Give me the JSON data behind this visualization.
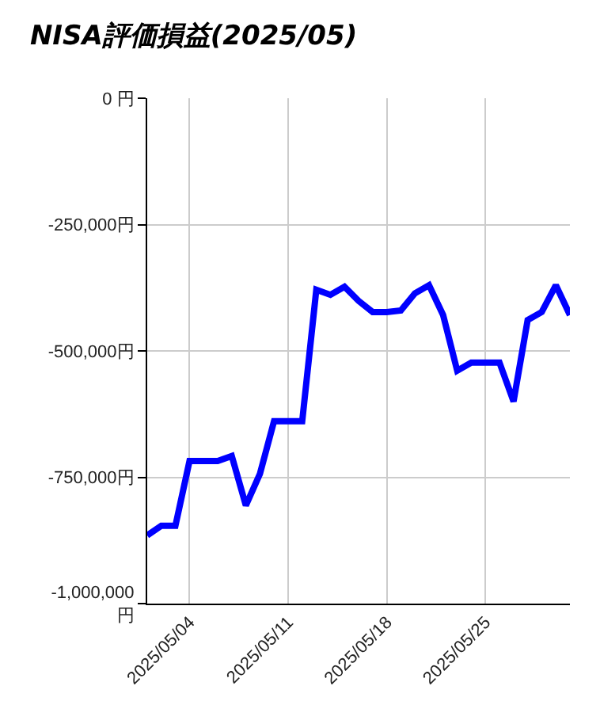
{
  "chart_data": {
    "type": "line",
    "title": "NISA評価損益(2025/05)",
    "x": [
      "2025-05-01",
      "2025-05-02",
      "2025-05-03",
      "2025-05-04",
      "2025-05-05",
      "2025-05-06",
      "2025-05-07",
      "2025-05-08",
      "2025-05-09",
      "2025-05-10",
      "2025-05-11",
      "2025-05-12",
      "2025-05-13",
      "2025-05-14",
      "2025-05-15",
      "2025-05-16",
      "2025-05-17",
      "2025-05-18",
      "2025-05-19",
      "2025-05-20",
      "2025-05-21",
      "2025-05-22",
      "2025-05-23",
      "2025-05-24",
      "2025-05-25",
      "2025-05-26",
      "2025-05-27",
      "2025-05-28",
      "2025-05-29",
      "2025-05-30",
      "2025-05-31"
    ],
    "series": [
      {
        "color": "#0000ff",
        "values": [
          -865000,
          -846000,
          -846000,
          -718000,
          -718000,
          -718000,
          -708000,
          -806000,
          -743000,
          -639000,
          -639000,
          -639000,
          -379000,
          -389000,
          -373000,
          -401000,
          -423000,
          -423000,
          -420000,
          -386000,
          -370000,
          -429000,
          -539000,
          -523000,
          -523000,
          -523000,
          -600000,
          -439000,
          -423000,
          -370000,
          -429000
        ]
      }
    ],
    "xlim": [
      "2025-05-01",
      "2025-05-31"
    ],
    "xticks": [
      {
        "value": "2025-05-04",
        "label": "2025/05/04"
      },
      {
        "value": "2025-05-11",
        "label": "2025/05/11"
      },
      {
        "value": "2025-05-18",
        "label": "2025/05/18"
      },
      {
        "value": "2025-05-25",
        "label": "2025/05/25"
      }
    ],
    "ylim": [
      -1000000,
      0
    ],
    "yticks": [
      {
        "value": 0,
        "label": "0 円"
      },
      {
        "value": -250000,
        "label": "-250,000円"
      },
      {
        "value": -500000,
        "label": "-500,000円"
      },
      {
        "value": -750000,
        "label": "-750,000円"
      },
      {
        "value": -1000000,
        "label": "-1,000,000円"
      }
    ],
    "grid": true,
    "marker": "none",
    "line_style": "solid"
  }
}
